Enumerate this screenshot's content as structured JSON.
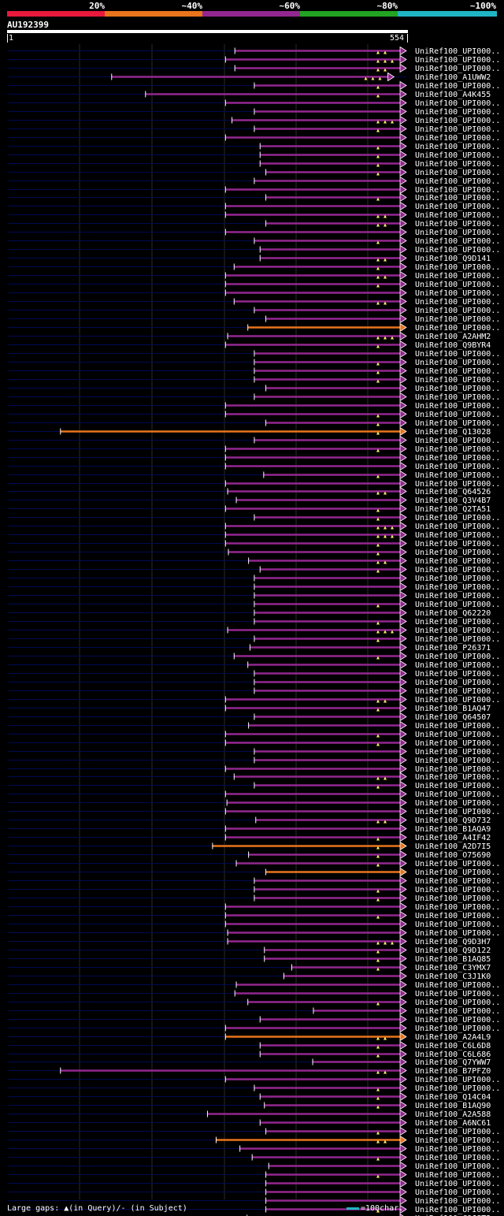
{
  "identity_legend": {
    "labels": [
      "20%",
      "~40%",
      "~60%",
      "~80%",
      "~100%"
    ],
    "colors": [
      "#e8193c",
      "#e8741c",
      "#93278f",
      "#22a322",
      "#1fb5c4"
    ]
  },
  "query": {
    "name": "AU192399",
    "start": "1",
    "end": "554"
  },
  "footer": {
    "gaps_text": "Large gaps: ▲(in Query)/- (in Subject)",
    "scale_text": "=100char."
  },
  "chart_data": {
    "type": "alignment",
    "query_length": 554,
    "hits": [
      {
        "name": "UniRef100_UPI000..",
        "start": 316,
        "end": 554,
        "color": "purple",
        "tri": 2
      },
      {
        "name": "UniRef100_UPI000..",
        "start": 303,
        "end": 554,
        "color": "purple",
        "tri": 3
      },
      {
        "name": "UniRef100_UPI000..",
        "start": 316,
        "end": 554,
        "color": "purple",
        "tri": 2
      },
      {
        "name": "UniRef100_A1UWW2",
        "start": 145,
        "end": 537,
        "color": "purple",
        "tri": 3
      },
      {
        "name": "UniRef100_UPI000..",
        "start": 343,
        "end": 554,
        "color": "purple",
        "tri": 1
      },
      {
        "name": "UniRef100_A4K455",
        "start": 192,
        "end": 554,
        "color": "purple",
        "tri": 1
      },
      {
        "name": "UniRef100_UPI000..",
        "start": 303,
        "end": 554,
        "color": "purple",
        "tri": 0
      },
      {
        "name": "UniRef100_UPI000..",
        "start": 343,
        "end": 554,
        "color": "purple",
        "tri": 0
      },
      {
        "name": "UniRef100_UPI000..",
        "start": 312,
        "end": 554,
        "color": "purple",
        "tri": 3
      },
      {
        "name": "UniRef100_UPI000..",
        "start": 343,
        "end": 554,
        "color": "purple",
        "tri": 1
      },
      {
        "name": "UniRef100_UPI000..",
        "start": 303,
        "end": 554,
        "color": "purple",
        "tri": 0
      },
      {
        "name": "UniRef100_UPI000..",
        "start": 351,
        "end": 554,
        "color": "purple",
        "tri": 1
      },
      {
        "name": "UniRef100_UPI000..",
        "start": 351,
        "end": 554,
        "color": "purple",
        "tri": 1
      },
      {
        "name": "UniRef100_UPI000..",
        "start": 351,
        "end": 554,
        "color": "purple",
        "tri": 1
      },
      {
        "name": "UniRef100_UPI000..",
        "start": 359,
        "end": 554,
        "color": "purple",
        "tri": 1
      },
      {
        "name": "UniRef100_UPI000..",
        "start": 343,
        "end": 554,
        "color": "purple",
        "tri": 0
      },
      {
        "name": "UniRef100_UPI000..",
        "start": 303,
        "end": 554,
        "color": "purple",
        "tri": 0
      },
      {
        "name": "UniRef100_UPI000..",
        "start": 359,
        "end": 554,
        "color": "purple",
        "tri": 1
      },
      {
        "name": "UniRef100_UPI000..",
        "start": 303,
        "end": 554,
        "color": "purple",
        "tri": 0
      },
      {
        "name": "UniRef100_UPI000..",
        "start": 303,
        "end": 554,
        "color": "purple",
        "tri": 2
      },
      {
        "name": "UniRef100_UPI000..",
        "start": 359,
        "end": 554,
        "color": "purple",
        "tri": 2
      },
      {
        "name": "UniRef100_UPI000..",
        "start": 303,
        "end": 554,
        "color": "purple",
        "tri": 0
      },
      {
        "name": "UniRef100_UPI000..",
        "start": 343,
        "end": 554,
        "color": "purple",
        "tri": 1
      },
      {
        "name": "UniRef100_UPI000..",
        "start": 351,
        "end": 554,
        "color": "purple",
        "tri": 0
      },
      {
        "name": "UniRef100_Q9D141",
        "start": 351,
        "end": 554,
        "color": "purple",
        "tri": 2
      },
      {
        "name": "UniRef100_UPI000..",
        "start": 315,
        "end": 554,
        "color": "purple",
        "tri": 1
      },
      {
        "name": "UniRef100_UPI000..",
        "start": 303,
        "end": 554,
        "color": "purple",
        "tri": 2
      },
      {
        "name": "UniRef100_UPI000..",
        "start": 303,
        "end": 554,
        "color": "purple",
        "tri": 1
      },
      {
        "name": "UniRef100_UPI000..",
        "start": 303,
        "end": 554,
        "color": "purple",
        "tri": 0
      },
      {
        "name": "UniRef100_UPI000..",
        "start": 315,
        "end": 554,
        "color": "purple",
        "tri": 2
      },
      {
        "name": "UniRef100_UPI000..",
        "start": 343,
        "end": 554,
        "color": "purple",
        "tri": 0
      },
      {
        "name": "UniRef100_UPI000..",
        "start": 359,
        "end": 554,
        "color": "purple",
        "tri": 0
      },
      {
        "name": "UniRef100_UPI000..",
        "start": 334,
        "end": 554,
        "color": "orange",
        "tri": 0
      },
      {
        "name": "UniRef100_A2AHM2",
        "start": 306,
        "end": 554,
        "color": "purple",
        "tri": 3
      },
      {
        "name": "UniRef100_Q9BYR4",
        "start": 303,
        "end": 554,
        "color": "purple",
        "tri": 1
      },
      {
        "name": "UniRef100_UPI000..",
        "start": 343,
        "end": 554,
        "color": "purple",
        "tri": 0
      },
      {
        "name": "UniRef100_UPI000..",
        "start": 343,
        "end": 554,
        "color": "purple",
        "tri": 1
      },
      {
        "name": "UniRef100_UPI000..",
        "start": 343,
        "end": 554,
        "color": "purple",
        "tri": 1
      },
      {
        "name": "UniRef100_UPI000..",
        "start": 343,
        "end": 554,
        "color": "purple",
        "tri": 1
      },
      {
        "name": "UniRef100_UPI000..",
        "start": 359,
        "end": 554,
        "color": "purple",
        "tri": 0
      },
      {
        "name": "UniRef100_UPI000..",
        "start": 343,
        "end": 554,
        "color": "purple",
        "tri": 0
      },
      {
        "name": "UniRef100_UPI000..",
        "start": 303,
        "end": 554,
        "color": "purple",
        "tri": 0
      },
      {
        "name": "UniRef100_UPI000..",
        "start": 303,
        "end": 554,
        "color": "purple",
        "tri": 1
      },
      {
        "name": "UniRef100_UPI000..",
        "start": 359,
        "end": 554,
        "color": "purple",
        "tri": 1
      },
      {
        "name": "UniRef100_Q13028",
        "start": 74,
        "end": 554,
        "color": "orange",
        "tri": 1
      },
      {
        "name": "UniRef100_UPI000..",
        "start": 343,
        "end": 554,
        "color": "purple",
        "tri": 0
      },
      {
        "name": "UniRef100_UPI000..",
        "start": 303,
        "end": 554,
        "color": "purple",
        "tri": 1
      },
      {
        "name": "UniRef100_UPI000..",
        "start": 303,
        "end": 554,
        "color": "purple",
        "tri": 0
      },
      {
        "name": "UniRef100_UPI000..",
        "start": 303,
        "end": 554,
        "color": "purple",
        "tri": 0
      },
      {
        "name": "UniRef100_UPI000..",
        "start": 356,
        "end": 554,
        "color": "purple",
        "tri": 1
      },
      {
        "name": "UniRef100_UPI000..",
        "start": 303,
        "end": 554,
        "color": "purple",
        "tri": 0
      },
      {
        "name": "UniRef100_Q64526",
        "start": 306,
        "end": 554,
        "color": "purple",
        "tri": 2
      },
      {
        "name": "UniRef100_Q3V4B7",
        "start": 318,
        "end": 554,
        "color": "purple",
        "tri": 0
      },
      {
        "name": "UniRef100_Q2TA51",
        "start": 303,
        "end": 554,
        "color": "purple",
        "tri": 1
      },
      {
        "name": "UniRef100_UPI000..",
        "start": 343,
        "end": 554,
        "color": "purple",
        "tri": 1
      },
      {
        "name": "UniRef100_UPI000..",
        "start": 303,
        "end": 554,
        "color": "purple",
        "tri": 3
      },
      {
        "name": "UniRef100_UPI000..",
        "start": 303,
        "end": 554,
        "color": "purple",
        "tri": 3
      },
      {
        "name": "UniRef100_UPI000..",
        "start": 303,
        "end": 554,
        "color": "purple",
        "tri": 1
      },
      {
        "name": "UniRef100_UPI000..",
        "start": 307,
        "end": 554,
        "color": "purple",
        "tri": 1
      },
      {
        "name": "UniRef100_UPI000..",
        "start": 335,
        "end": 554,
        "color": "purple",
        "tri": 2
      },
      {
        "name": "UniRef100_UPI000..",
        "start": 351,
        "end": 554,
        "color": "purple",
        "tri": 1
      },
      {
        "name": "UniRef100_UPI000..",
        "start": 343,
        "end": 554,
        "color": "purple",
        "tri": 0
      },
      {
        "name": "UniRef100_UPI000..",
        "start": 343,
        "end": 554,
        "color": "purple",
        "tri": 0
      },
      {
        "name": "UniRef100_UPI000..",
        "start": 343,
        "end": 554,
        "color": "purple",
        "tri": 0
      },
      {
        "name": "UniRef100_UPI000..",
        "start": 343,
        "end": 554,
        "color": "purple",
        "tri": 1
      },
      {
        "name": "UniRef100_Q62220",
        "start": 343,
        "end": 554,
        "color": "purple",
        "tri": 0
      },
      {
        "name": "UniRef100_UPI000..",
        "start": 343,
        "end": 554,
        "color": "purple",
        "tri": 1
      },
      {
        "name": "UniRef100_UPI000..",
        "start": 306,
        "end": 554,
        "color": "purple",
        "tri": 3
      },
      {
        "name": "UniRef100_UPI000..",
        "start": 343,
        "end": 554,
        "color": "purple",
        "tri": 1
      },
      {
        "name": "UniRef100_P26371",
        "start": 337,
        "end": 554,
        "color": "purple",
        "tri": 0
      },
      {
        "name": "UniRef100_UPI000..",
        "start": 315,
        "end": 554,
        "color": "purple",
        "tri": 1
      },
      {
        "name": "UniRef100_UPI000..",
        "start": 334,
        "end": 554,
        "color": "purple",
        "tri": 0
      },
      {
        "name": "UniRef100_UPI000..",
        "start": 343,
        "end": 554,
        "color": "purple",
        "tri": 0
      },
      {
        "name": "UniRef100_UPI000..",
        "start": 343,
        "end": 554,
        "color": "purple",
        "tri": 0
      },
      {
        "name": "UniRef100_UPI000..",
        "start": 343,
        "end": 554,
        "color": "purple",
        "tri": 0
      },
      {
        "name": "UniRef100_UPI000..",
        "start": 303,
        "end": 554,
        "color": "purple",
        "tri": 2
      },
      {
        "name": "UniRef100_B1AQ47",
        "start": 303,
        "end": 554,
        "color": "purple",
        "tri": 1
      },
      {
        "name": "UniRef100_Q64507",
        "start": 343,
        "end": 554,
        "color": "purple",
        "tri": 0
      },
      {
        "name": "UniRef100_UPI000..",
        "start": 335,
        "end": 554,
        "color": "purple",
        "tri": 0
      },
      {
        "name": "UniRef100_UPI000..",
        "start": 303,
        "end": 554,
        "color": "purple",
        "tri": 1
      },
      {
        "name": "UniRef100_UPI000..",
        "start": 303,
        "end": 554,
        "color": "purple",
        "tri": 1
      },
      {
        "name": "UniRef100_UPI000..",
        "start": 343,
        "end": 554,
        "color": "purple",
        "tri": 0
      },
      {
        "name": "UniRef100_UPI000..",
        "start": 343,
        "end": 554,
        "color": "purple",
        "tri": 0
      },
      {
        "name": "UniRef100_UPI000..",
        "start": 303,
        "end": 554,
        "color": "purple",
        "tri": 0
      },
      {
        "name": "UniRef100_UPI000..",
        "start": 315,
        "end": 554,
        "color": "purple",
        "tri": 2
      },
      {
        "name": "UniRef100_UPI000..",
        "start": 343,
        "end": 554,
        "color": "purple",
        "tri": 1
      },
      {
        "name": "UniRef100_UPI000..",
        "start": 303,
        "end": 554,
        "color": "purple",
        "tri": 0
      },
      {
        "name": "UniRef100_UPI000..",
        "start": 305,
        "end": 554,
        "color": "purple",
        "tri": 0
      },
      {
        "name": "UniRef100_UPI000..",
        "start": 303,
        "end": 554,
        "color": "purple",
        "tri": 0
      },
      {
        "name": "UniRef100_Q9D732",
        "start": 345,
        "end": 554,
        "color": "purple",
        "tri": 2
      },
      {
        "name": "UniRef100_B1AQA9",
        "start": 303,
        "end": 554,
        "color": "purple",
        "tri": 0
      },
      {
        "name": "UniRef100_A4IF42",
        "start": 303,
        "end": 554,
        "color": "purple",
        "tri": 1
      },
      {
        "name": "UniRef100_A2D7I5",
        "start": 285,
        "end": 554,
        "color": "orange",
        "tri": 1
      },
      {
        "name": "UniRef100_O75690",
        "start": 335,
        "end": 554,
        "color": "purple",
        "tri": 1
      },
      {
        "name": "UniRef100_UPI000..",
        "start": 318,
        "end": 554,
        "color": "purple",
        "tri": 1
      },
      {
        "name": "UniRef100_UPI000..",
        "start": 359,
        "end": 554,
        "color": "orange",
        "tri": 0
      },
      {
        "name": "UniRef100_UPI000..",
        "start": 343,
        "end": 554,
        "color": "purple",
        "tri": 0
      },
      {
        "name": "UniRef100_UPI000..",
        "start": 343,
        "end": 554,
        "color": "purple",
        "tri": 1
      },
      {
        "name": "UniRef100_UPI000..",
        "start": 343,
        "end": 554,
        "color": "purple",
        "tri": 1
      },
      {
        "name": "UniRef100_UPI000..",
        "start": 303,
        "end": 554,
        "color": "purple",
        "tri": 0
      },
      {
        "name": "UniRef100_UPI000..",
        "start": 303,
        "end": 554,
        "color": "purple",
        "tri": 1
      },
      {
        "name": "UniRef100_UPI000..",
        "start": 303,
        "end": 554,
        "color": "purple",
        "tri": 0
      },
      {
        "name": "UniRef100_UPI000..",
        "start": 306,
        "end": 554,
        "color": "purple",
        "tri": 0
      },
      {
        "name": "UniRef100_Q9D3H7",
        "start": 306,
        "end": 554,
        "color": "purple",
        "tri": 3
      },
      {
        "name": "UniRef100_Q9D122",
        "start": 357,
        "end": 554,
        "color": "purple",
        "tri": 1
      },
      {
        "name": "UniRef100_B1AQ85",
        "start": 357,
        "end": 554,
        "color": "purple",
        "tri": 1
      },
      {
        "name": "UniRef100_C3YMX7",
        "start": 395,
        "end": 554,
        "color": "purple",
        "tri": 1
      },
      {
        "name": "UniRef100_C3J1K0",
        "start": 384,
        "end": 554,
        "color": "purple",
        "tri": 0
      },
      {
        "name": "UniRef100_UPI000..",
        "start": 318,
        "end": 554,
        "color": "purple",
        "tri": 0
      },
      {
        "name": "UniRef100_UPI000..",
        "start": 316,
        "end": 554,
        "color": "purple",
        "tri": 0
      },
      {
        "name": "UniRef100_UPI000..",
        "start": 334,
        "end": 554,
        "color": "purple",
        "tri": 1
      },
      {
        "name": "UniRef100_UPI000..",
        "start": 425,
        "end": 554,
        "color": "purple",
        "tri": 0
      },
      {
        "name": "UniRef100_UPI000..",
        "start": 351,
        "end": 554,
        "color": "purple",
        "tri": 0
      },
      {
        "name": "UniRef100_UPI000..",
        "start": 303,
        "end": 554,
        "color": "purple",
        "tri": 0
      },
      {
        "name": "UniRef100_A2A4L9",
        "start": 303,
        "end": 554,
        "color": "orange",
        "tri": 2
      },
      {
        "name": "UniRef100_C6L6D8",
        "start": 351,
        "end": 554,
        "color": "purple",
        "tri": 1
      },
      {
        "name": "UniRef100_C6L686",
        "start": 351,
        "end": 554,
        "color": "purple",
        "tri": 1
      },
      {
        "name": "UniRef100_Q7YWW7",
        "start": 424,
        "end": 554,
        "color": "purple",
        "tri": 0
      },
      {
        "name": "UniRef100_B7PFZ0",
        "start": 74,
        "end": 554,
        "color": "purple",
        "tri": 2
      },
      {
        "name": "UniRef100_UPI000..",
        "start": 303,
        "end": 554,
        "color": "purple",
        "tri": 0
      },
      {
        "name": "UniRef100_UPI000..",
        "start": 343,
        "end": 554,
        "color": "purple",
        "tri": 1
      },
      {
        "name": "UniRef100_Q14C04",
        "start": 351,
        "end": 554,
        "color": "purple",
        "tri": 1
      },
      {
        "name": "UniRef100_B1AQ90",
        "start": 357,
        "end": 554,
        "color": "purple",
        "tri": 1
      },
      {
        "name": "UniRef100_A2A588",
        "start": 278,
        "end": 554,
        "color": "purple",
        "tri": 0
      },
      {
        "name": "UniRef100_A6NC61",
        "start": 351,
        "end": 554,
        "color": "purple",
        "tri": 0
      },
      {
        "name": "UniRef100_UPI000..",
        "start": 359,
        "end": 554,
        "color": "purple",
        "tri": 1
      },
      {
        "name": "UniRef100_UPI000..",
        "start": 290,
        "end": 554,
        "color": "orange",
        "tri": 2
      },
      {
        "name": "UniRef100_UPI000..",
        "start": 323,
        "end": 554,
        "color": "purple",
        "tri": 0
      },
      {
        "name": "UniRef100_UPI000..",
        "start": 340,
        "end": 554,
        "color": "purple",
        "tri": 1
      },
      {
        "name": "UniRef100_UPI000..",
        "start": 363,
        "end": 554,
        "color": "purple",
        "tri": 0
      },
      {
        "name": "UniRef100_UPI000..",
        "start": 359,
        "end": 554,
        "color": "purple",
        "tri": 1
      },
      {
        "name": "UniRef100_UPI000..",
        "start": 359,
        "end": 554,
        "color": "purple",
        "tri": 0
      },
      {
        "name": "UniRef100_UPI000..",
        "start": 359,
        "end": 554,
        "color": "purple",
        "tri": 0
      },
      {
        "name": "UniRef100_UPI000..",
        "start": 359,
        "end": 554,
        "color": "purple",
        "tri": 0
      },
      {
        "name": "UniRef100_UPI000..",
        "start": 359,
        "end": 554,
        "color": "purple",
        "tri": 1
      },
      {
        "name": "UniRef100_C9JST3",
        "start": 333,
        "end": 554,
        "color": "purple",
        "tri": 0
      },
      {
        "name": "UniRef100_B9ZVX9",
        "start": 378,
        "end": 554,
        "color": "purple",
        "tri": 0
      }
    ]
  }
}
